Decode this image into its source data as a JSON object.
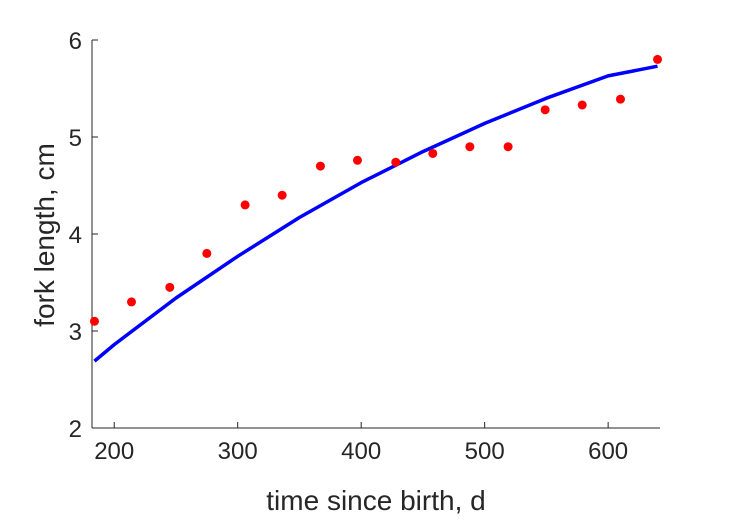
{
  "chart_data": {
    "type": "scatter",
    "xlabel": "time since birth, d",
    "ylabel": "fork length, cm",
    "xlim": [
      182,
      642
    ],
    "ylim": [
      2,
      6
    ],
    "xticks": [
      200,
      300,
      400,
      500,
      600
    ],
    "yticks": [
      2,
      3,
      4,
      5,
      6
    ],
    "grid": false,
    "series": [
      {
        "kind": "points",
        "color": "#ff0000",
        "x": [
          184,
          214,
          245,
          275,
          306,
          336,
          367,
          397,
          428,
          458,
          488,
          519,
          549,
          579,
          610,
          640
        ],
        "y": [
          3.1,
          3.3,
          3.45,
          3.8,
          4.3,
          4.4,
          4.7,
          4.76,
          4.74,
          4.83,
          4.9,
          4.9,
          5.28,
          5.33,
          5.39,
          5.8
        ]
      },
      {
        "kind": "line",
        "color": "#0000ff",
        "x": [
          184,
          200,
          250,
          300,
          350,
          400,
          450,
          500,
          550,
          600,
          640
        ],
        "y": [
          2.69,
          2.86,
          3.34,
          3.77,
          4.17,
          4.53,
          4.85,
          5.14,
          5.4,
          5.63,
          5.73
        ]
      }
    ]
  }
}
